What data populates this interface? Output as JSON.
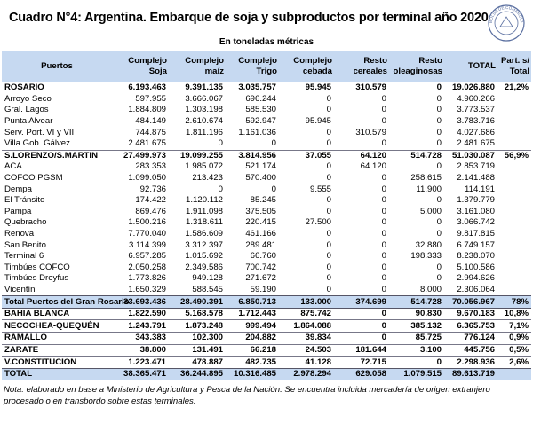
{
  "header": {
    "title": "Cuadro N°4: Argentina. Embarque de soja y subproductos por terminal año 2020",
    "subtitle": "En toneladas métricas",
    "logo": "BOLSA DE COMERCIO DE ROSARIO"
  },
  "table": {
    "header": [
      "Puertos",
      "Complejo Soja",
      "Complejo maíz",
      "Complejo Trigo",
      "Complejo cebada",
      "Resto cereales",
      "Resto oleaginosas",
      "TOTAL",
      "Part. s/ Total"
    ],
    "rows": [
      [
        "ROSARIO",
        "6.193.463",
        "9.391.135",
        "3.035.757",
        "95.945",
        "310.579",
        "0",
        "19.026.880",
        "21,2%"
      ],
      [
        "Arroyo Seco",
        "597.955",
        "3.666.067",
        "696.244",
        "0",
        "0",
        "0",
        "4.960.266"
      ],
      [
        "Gral. Lagos",
        "1.884.809",
        "1.303.198",
        "585.530",
        "0",
        "0",
        "0",
        "3.773.537"
      ],
      [
        "Punta Alvear",
        "484.149",
        "2.610.674",
        "592.947",
        "95.945",
        "0",
        "0",
        "3.783.716"
      ],
      [
        "Serv. Port. VI y VII",
        "744.875",
        "1.811.196",
        "1.161.036",
        "0",
        "310.579",
        "0",
        "4.027.686"
      ],
      [
        "Villa Gob. Gálvez",
        "2.481.675",
        "0",
        "0",
        "0",
        "0",
        "0",
        "2.481.675"
      ],
      [
        "S.LORENZO/S.MARTIN",
        "27.499.973",
        "19.099.255",
        "3.814.956",
        "37.055",
        "64.120",
        "514.728",
        "51.030.087",
        "56,9%"
      ],
      [
        "ACA",
        "283.353",
        "1.985.072",
        "521.174",
        "0",
        "64.120",
        "0",
        "2.853.719"
      ],
      [
        "COFCO PGSM",
        "1.099.050",
        "213.423",
        "570.400",
        "0",
        "0",
        "258.615",
        "2.141.488"
      ],
      [
        "Dempa",
        "92.736",
        "0",
        "0",
        "9.555",
        "0",
        "11.900",
        "114.191"
      ],
      [
        "El Tránsito",
        "174.422",
        "1.120.112",
        "85.245",
        "0",
        "0",
        "0",
        "1.379.779"
      ],
      [
        "Pampa",
        "869.476",
        "1.911.098",
        "375.505",
        "0",
        "0",
        "5.000",
        "3.161.080"
      ],
      [
        "Quebracho",
        "1.500.216",
        "1.318.611",
        "220.415",
        "27.500",
        "0",
        "0",
        "3.066.742"
      ],
      [
        "Renova",
        "7.770.040",
        "1.586.609",
        "461.166",
        "0",
        "0",
        "0",
        "9.817.815"
      ],
      [
        "San Benito",
        "3.114.399",
        "3.312.397",
        "289.481",
        "0",
        "0",
        "32.880",
        "6.749.157"
      ],
      [
        "Terminal 6",
        "6.957.285",
        "1.015.692",
        "66.760",
        "0",
        "0",
        "198.333",
        "8.238.070"
      ],
      [
        "Timbúes COFCO",
        "2.050.258",
        "2.349.586",
        "700.742",
        "0",
        "0",
        "0",
        "5.100.586"
      ],
      [
        "Timbúes Dreyfus",
        "1.773.826",
        "949.128",
        "271.672",
        "0",
        "0",
        "0",
        "2.994.626"
      ],
      [
        "Vicentín",
        "1.650.329",
        "588.545",
        "59.190",
        "0",
        "0",
        "8.000",
        "2.306.064"
      ],
      [
        "Total Puertos del Gran Rosario",
        "33.693.436",
        "28.490.391",
        "6.850.713",
        "133.000",
        "374.699",
        "514.728",
        "70.056.967",
        "78%"
      ],
      [
        "BAHIA BLANCA",
        "1.822.590",
        "5.168.578",
        "1.712.443",
        "875.742",
        "0",
        "90.830",
        "9.670.183",
        "10,8%"
      ],
      [
        "NECOCHEA-QUEQUÉN",
        "1.243.791",
        "1.873.248",
        "999.494",
        "1.864.088",
        "0",
        "385.132",
        "6.365.753",
        "7,1%"
      ],
      [
        "RAMALLO",
        "343.383",
        "102.300",
        "204.882",
        "39.834",
        "0",
        "85.725",
        "776.124",
        "0,9%"
      ],
      [
        "ZARATE",
        "38.800",
        "131.491",
        "66.218",
        "24.503",
        "181.644",
        "3.100",
        "445.756",
        "0,5%"
      ],
      [
        "V.CONSTITUCION",
        "1.223.471",
        "478.887",
        "482.735",
        "41.128",
        "72.715",
        "0",
        "2.298.936",
        "2,6%"
      ],
      [
        "TOTAL",
        "38.365.471",
        "36.244.895",
        "10.316.485",
        "2.978.294",
        "629.058",
        "1.079.515",
        "89.613.719"
      ]
    ]
  },
  "note": "Nota: elaborado en base a Ministerio de Agricultura y Pesca de la Nación. Se encuentra incluida mercadería de origen extranjero procesado o en transbordo sobre estas terminales."
}
